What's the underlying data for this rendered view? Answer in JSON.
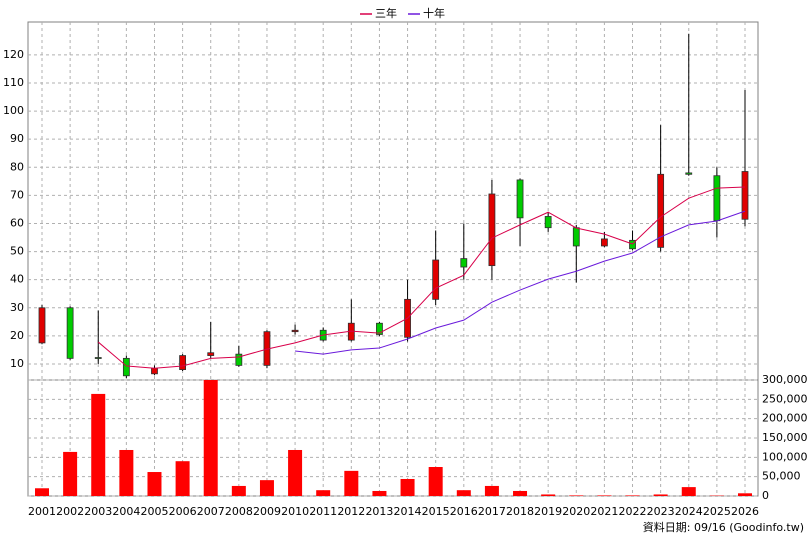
{
  "chart_data": {
    "type": "candlestick",
    "categories": [
      "2001",
      "2002",
      "2003",
      "2004",
      "2005",
      "2006",
      "2007",
      "2008",
      "2009",
      "2010",
      "2011",
      "2012",
      "2013",
      "2014",
      "2015",
      "2016",
      "2017",
      "2018",
      "2019",
      "2020",
      "2021",
      "2022",
      "2023",
      "2024",
      "2025",
      "2026"
    ],
    "open": [
      17.5,
      30,
      12.3,
      12,
      6.5,
      8,
      13,
      13.5,
      9.5,
      21.5,
      22,
      18.5,
      24.5,
      19.5,
      33,
      47.5,
      45,
      75.5,
      62.5,
      58.5,
      52,
      54,
      51.5,
      78,
      77,
      61.5
    ],
    "high": [
      31,
      30.5,
      29,
      13,
      9.5,
      13.5,
      25,
      16.5,
      22,
      24,
      23,
      33,
      25,
      40,
      57.5,
      60,
      75.5,
      76,
      64,
      59.5,
      57,
      57.5,
      95,
      127.5,
      80,
      107.5
    ],
    "low": [
      17,
      11.5,
      10,
      5,
      6,
      7.5,
      12,
      9,
      8.5,
      20.5,
      18,
      18,
      20,
      18,
      31,
      40,
      40,
      52,
      57,
      39,
      51.5,
      50.5,
      50,
      77,
      55,
      59
    ],
    "close": [
      30,
      12,
      12,
      5.8,
      8.5,
      13,
      14,
      9.5,
      21.5,
      22,
      18.5,
      24.5,
      20.5,
      33,
      47,
      44.5,
      70.5,
      62,
      58.5,
      52,
      54.5,
      51,
      77.5,
      77.5,
      61,
      78.5
    ],
    "up_color": "#e00000",
    "down_color": "#00cc00",
    "series": [
      {
        "name": "三年",
        "color": "#d8004a",
        "values": [
          null,
          null,
          17.8,
          9.3,
          8.5,
          9.3,
          12,
          12.5,
          15.3,
          17.5,
          20.3,
          21.7,
          21,
          26.3,
          37,
          41.6,
          54.8,
          59.5,
          64,
          58.4,
          56.2,
          52.7,
          62.3,
          69,
          72.6,
          73
        ]
      },
      {
        "name": "十年",
        "color": "#6a1adb",
        "values": [
          null,
          null,
          null,
          null,
          null,
          null,
          null,
          null,
          null,
          14.6,
          13.5,
          15,
          15.7,
          18.9,
          22.8,
          25.6,
          32,
          36.3,
          40.2,
          43,
          46.6,
          49.5,
          55.2,
          59.5,
          60.9,
          64.4
        ]
      }
    ],
    "ylim": [
      4.3,
      131.7
    ],
    "yticks": [
      10,
      20,
      30,
      40,
      50,
      60,
      70,
      80,
      90,
      100,
      110,
      120
    ],
    "grid": true,
    "volume": {
      "color": "#ff0000",
      "values": [
        20000,
        114000,
        264000,
        119000,
        62000,
        90000,
        300000,
        26000,
        41000,
        119000,
        15000,
        65000,
        13000,
        44000,
        75000,
        15000,
        26000,
        13000,
        4000,
        1500,
        1500,
        1500,
        4000,
        23000,
        1000,
        7000
      ],
      "ylim": [
        0,
        300000
      ],
      "yticks": [
        0,
        {
          "value": 50000,
          "label": "50,000"
        },
        {
          "value": 100000,
          "label": "100,000"
        },
        {
          "value": 150000,
          "label": "150,000"
        },
        {
          "value": 200000,
          "label": "200,000"
        },
        {
          "value": 250000,
          "label": "250,000"
        },
        {
          "value": 300000,
          "label": "300,000"
        }
      ]
    },
    "footer": "資料日期: 09/16 (Goodinfo.tw)"
  }
}
